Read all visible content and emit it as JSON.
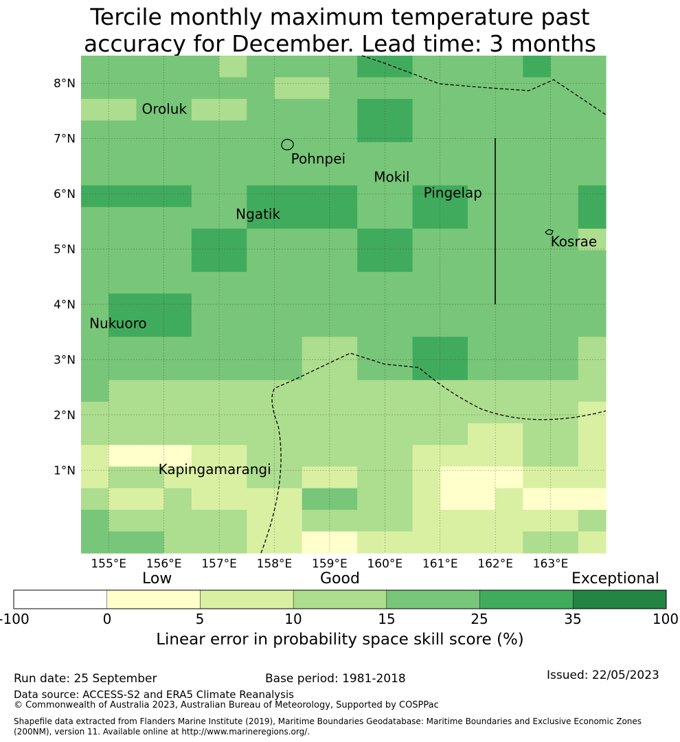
{
  "title": {
    "line1": "Tercile monthly maximum temperature past",
    "line2": "accuracy for December. Lead time: 3 months"
  },
  "map": {
    "lon_range": [
      154.5,
      164.0
    ],
    "lat_range": [
      -0.5,
      8.5
    ],
    "cell_size_deg": 0.8333,
    "lon_ticks": [
      {
        "value": 155,
        "label": "155°E"
      },
      {
        "value": 156,
        "label": "156°E"
      },
      {
        "value": 157,
        "label": "157°E"
      },
      {
        "value": 158,
        "label": "158°E"
      },
      {
        "value": 159,
        "label": "159°E"
      },
      {
        "value": 160,
        "label": "160°E"
      },
      {
        "value": 161,
        "label": "161°E"
      },
      {
        "value": 162,
        "label": "162°E"
      },
      {
        "value": 163,
        "label": "163°E"
      }
    ],
    "lat_ticks": [
      {
        "value": 8,
        "label": "8°N"
      },
      {
        "value": 7,
        "label": "7°N"
      },
      {
        "value": 6,
        "label": "6°N"
      },
      {
        "value": 5,
        "label": "5°N"
      },
      {
        "value": 4,
        "label": "4°N"
      },
      {
        "value": 3,
        "label": "3°N"
      },
      {
        "value": 2,
        "label": "2°N"
      },
      {
        "value": 1,
        "label": "1°N"
      }
    ],
    "skill_category_grid": [
      [
        4,
        4,
        4,
        4,
        4,
        3,
        4,
        4,
        4,
        4,
        5,
        5,
        4,
        4,
        4,
        4,
        5,
        4,
        4
      ],
      [
        4,
        4,
        4,
        4,
        4,
        4,
        4,
        3,
        3,
        4,
        4,
        4,
        4,
        4,
        4,
        4,
        4,
        4,
        4
      ],
      [
        3,
        3,
        4,
        4,
        3,
        3,
        4,
        4,
        4,
        4,
        5,
        5,
        4,
        4,
        4,
        4,
        4,
        4,
        4
      ],
      [
        4,
        4,
        4,
        4,
        4,
        4,
        4,
        4,
        4,
        4,
        5,
        5,
        4,
        4,
        4,
        4,
        4,
        4,
        4
      ],
      [
        4,
        4,
        4,
        4,
        4,
        4,
        4,
        4,
        4,
        4,
        4,
        4,
        4,
        4,
        4,
        4,
        4,
        4,
        4
      ],
      [
        4,
        4,
        4,
        4,
        4,
        4,
        4,
        4,
        4,
        4,
        4,
        4,
        4,
        4,
        4,
        4,
        4,
        4,
        4
      ],
      [
        5,
        5,
        5,
        5,
        4,
        4,
        5,
        5,
        5,
        5,
        4,
        4,
        5,
        5,
        4,
        4,
        4,
        4,
        5
      ],
      [
        4,
        4,
        4,
        4,
        4,
        4,
        5,
        5,
        5,
        5,
        4,
        4,
        5,
        5,
        4,
        4,
        4,
        4,
        5
      ],
      [
        4,
        4,
        4,
        4,
        5,
        5,
        4,
        4,
        4,
        4,
        5,
        5,
        4,
        4,
        4,
        4,
        4,
        4,
        3
      ],
      [
        4,
        4,
        4,
        4,
        5,
        5,
        4,
        4,
        4,
        4,
        5,
        5,
        4,
        4,
        4,
        4,
        4,
        4,
        4
      ],
      [
        4,
        4,
        4,
        4,
        4,
        4,
        4,
        4,
        4,
        4,
        4,
        4,
        4,
        4,
        4,
        4,
        4,
        4,
        4
      ],
      [
        4,
        5,
        5,
        5,
        4,
        4,
        4,
        4,
        4,
        4,
        4,
        4,
        4,
        4,
        4,
        4,
        4,
        4,
        4
      ],
      [
        4,
        5,
        5,
        5,
        4,
        4,
        4,
        4,
        4,
        4,
        4,
        4,
        4,
        4,
        4,
        4,
        4,
        4,
        4
      ],
      [
        4,
        4,
        4,
        4,
        4,
        4,
        4,
        4,
        3,
        3,
        4,
        4,
        5,
        5,
        4,
        4,
        4,
        4,
        3
      ],
      [
        4,
        4,
        4,
        4,
        4,
        4,
        4,
        4,
        3,
        3,
        4,
        4,
        5,
        5,
        4,
        4,
        4,
        4,
        3
      ],
      [
        4,
        3,
        3,
        3,
        3,
        3,
        3,
        3,
        3,
        3,
        3,
        3,
        3,
        3,
        3,
        3,
        3,
        3,
        3
      ],
      [
        3,
        3,
        3,
        3,
        3,
        3,
        3,
        3,
        3,
        3,
        3,
        3,
        3,
        3,
        3,
        3,
        3,
        3,
        2
      ],
      [
        3,
        3,
        3,
        3,
        3,
        3,
        3,
        3,
        3,
        3,
        3,
        3,
        3,
        3,
        2,
        2,
        3,
        3,
        2
      ],
      [
        2,
        1,
        1,
        1,
        2,
        2,
        3,
        3,
        3,
        3,
        3,
        3,
        2,
        2,
        2,
        2,
        3,
        3,
        2
      ],
      [
        2,
        3,
        3,
        2,
        2,
        2,
        3,
        3,
        2,
        2,
        3,
        3,
        2,
        1,
        1,
        1,
        2,
        2,
        2
      ],
      [
        3,
        2,
        2,
        3,
        2,
        2,
        2,
        2,
        4,
        4,
        3,
        3,
        2,
        1,
        1,
        2,
        1,
        1,
        1
      ],
      [
        4,
        3,
        3,
        3,
        3,
        3,
        2,
        2,
        3,
        3,
        3,
        3,
        2,
        2,
        2,
        2,
        2,
        2,
        3
      ],
      [
        4,
        4,
        4,
        3,
        3,
        3,
        2,
        2,
        1,
        1,
        2,
        2,
        2,
        2,
        2,
        2,
        3,
        3,
        2
      ]
    ],
    "place_labels": [
      {
        "name": "Oroluk",
        "lon": 155.6,
        "lat": 7.45
      },
      {
        "name": "Pohnpei",
        "lon": 158.3,
        "lat": 6.55
      },
      {
        "name": "Mokil",
        "lon": 159.8,
        "lat": 6.22
      },
      {
        "name": "Pingelap",
        "lon": 160.7,
        "lat": 5.93
      },
      {
        "name": "Ngatik",
        "lon": 157.3,
        "lat": 5.55
      },
      {
        "name": "Kosrae",
        "lon": 163.0,
        "lat": 5.05
      },
      {
        "name": "Nukuoro",
        "lon": 154.65,
        "lat": 3.57
      },
      {
        "name": "Kapingamarangi",
        "lon": 155.9,
        "lat": 0.93
      }
    ]
  },
  "colorbar": {
    "category_labels": [
      "Low",
      "Good",
      "Exceptional"
    ],
    "tick_labels": [
      "-100",
      "0",
      "5",
      "10",
      "15",
      "25",
      "35",
      "100"
    ],
    "colors": [
      "#ffffff",
      "#ffffcc",
      "#d9f0a3",
      "#addd8e",
      "#78c679",
      "#41ab5d",
      "#238443"
    ],
    "title": "Linear error in probability space skill score (%)"
  },
  "footer": {
    "run_date": "Run date: 25 September",
    "base_period": "Base period: 1981-2018",
    "issued": "Issued: 22/05/2023",
    "data_source": "Data source: ACCESS-S2 and ERA5 Climate Reanalysis",
    "copyright": "© Commonwealth of Australia 2023, Australian Bureau of Meteorology, Supported by COSPPac",
    "shapefile_line1": "Shapefile data extracted from Flanders Marine Institute (2019), Maritime Boundaries Geodatabase: Maritime Boundaries and Exclusive Economic Zones",
    "shapefile_line2": "(200NM), version 11. Available online at http://www.marineregions.org/."
  }
}
